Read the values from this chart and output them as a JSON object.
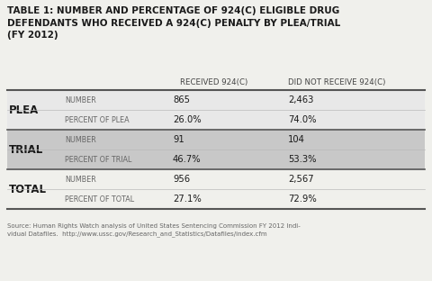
{
  "title_label": "TABLE 1: ",
  "title_bold": "NUMBER AND PERCENTAGE OF 924(C) ELIGIBLE DRUG\nDEFENDANTS WHO RECEIVED A 924(C) PENALTY BY PLEA/TRIAL\n(FY 2012)",
  "col_header1": "RECEIVED 924(C)",
  "col_header2": "DID NOT RECEIVE 924(C)",
  "row_groups": [
    {
      "group_label": "PLEA",
      "bg_color": "#e8e8e8",
      "rows": [
        {
          "label": "NUMBER",
          "val1": "865",
          "val2": "2,463"
        },
        {
          "label": "PERCENT OF PLEA",
          "val1": "26.0%",
          "val2": "74.0%"
        }
      ]
    },
    {
      "group_label": "TRIAL",
      "bg_color": "#c8c8c8",
      "rows": [
        {
          "label": "NUMBER",
          "val1": "91",
          "val2": "104"
        },
        {
          "label": "PERCENT OF TRIAL",
          "val1": "46.7%",
          "val2": "53.3%"
        }
      ]
    },
    {
      "group_label": "TOTAL",
      "bg_color": "#f0f0ec",
      "rows": [
        {
          "label": "NUMBER",
          "val1": "956",
          "val2": "2,567"
        },
        {
          "label": "PERCENT OF TOTAL",
          "val1": "27.1%",
          "val2": "72.9%"
        }
      ]
    }
  ],
  "source_text": "Source: Human Rights Watch analysis of United States Sentencing Commission FY 2012 Indi-\nvidual Datafiles.  http://www.ussc.gov/Research_and_Statistics/Datafiles/index.cfm",
  "bg_color": "#f0f0ec",
  "title_color": "#1a1a1a",
  "group_label_color": "#1a1a1a",
  "sub_label_color": "#666666",
  "value_color": "#1a1a1a",
  "col_header_color": "#444444",
  "source_color": "#666666",
  "fig_w": 4.8,
  "fig_h": 3.12,
  "dpi": 100
}
